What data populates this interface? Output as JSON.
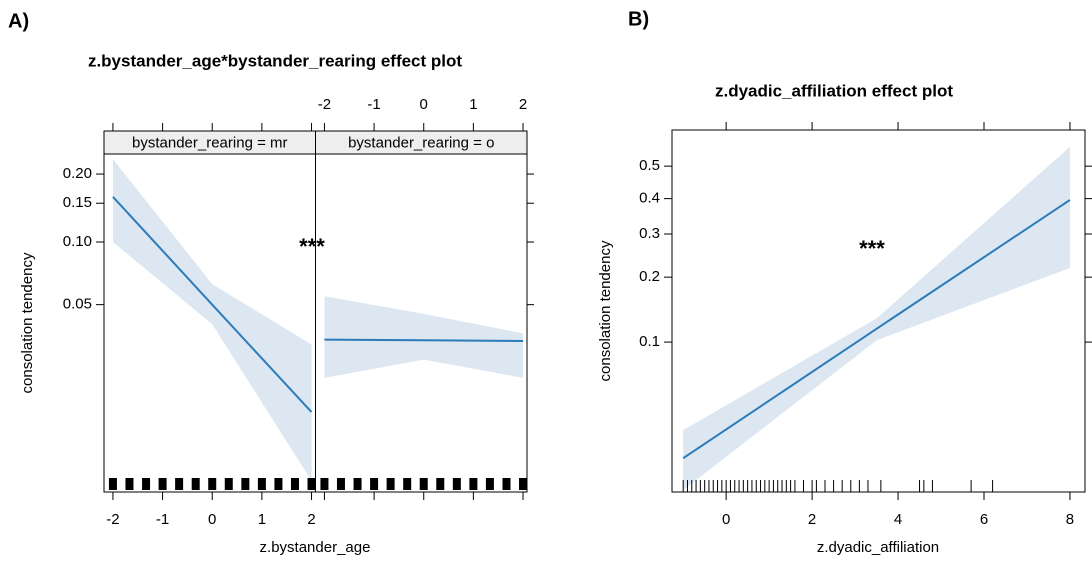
{
  "chart_data": [
    {
      "type": "line",
      "panel_label": "A)",
      "title": "z.bystander_age*bystander_rearing effect plot",
      "x_label": "z.bystander_age",
      "y_label": "consolation tendency",
      "annotation": "***",
      "yscale": "logit",
      "color": "#2b7bba",
      "band_color": "#dce7f2",
      "xlim": [
        -2.18,
        2.08
      ],
      "xticks": [
        -2,
        -1,
        0,
        1,
        2
      ],
      "ylim": [
        0.0056,
        0.241
      ],
      "yticks": [
        0.05,
        {
          "value": 0.1,
          "label": "0.10"
        },
        0.15,
        {
          "value": 0.2,
          "label": "0.20"
        }
      ],
      "facets": [
        {
          "strip": "bystander_rearing = mr",
          "x": [
            -2,
            0,
            2
          ],
          "values": [
            0.16,
            0.05,
            0.0144
          ],
          "upper": [
            0.23,
            0.063,
            0.0317
          ],
          "lower": [
            0.1,
            0.04,
            0.0064
          ],
          "rug": [
            -2,
            -1.667,
            -1.333,
            -1,
            -0.667,
            -0.333,
            0,
            0.333,
            0.667,
            1,
            1.333,
            1.667,
            2
          ]
        },
        {
          "strip": "bystander_rearing = o",
          "x": [
            -2,
            0,
            2
          ],
          "values": [
            0.0335,
            0.0333,
            0.033
          ],
          "upper": [
            0.055,
            0.045,
            0.036
          ],
          "lower": [
            0.0215,
            0.0266,
            0.0215
          ],
          "rug": [
            -2,
            -1.667,
            -1.333,
            -1,
            -0.667,
            -0.333,
            0,
            0.333,
            0.667,
            1,
            1.333,
            1.667,
            2
          ]
        }
      ]
    },
    {
      "type": "line",
      "panel_label": "B)",
      "title": "z.dyadic_affiliation effect plot",
      "x_label": "z.dyadic_affiliation",
      "y_label": "consolation tendency",
      "annotation": "***",
      "yscale": "logit",
      "color": "#2b7bba",
      "band_color": "#dce7f2",
      "xlim": [
        -1.26,
        8.35
      ],
      "xticks": [
        0,
        2,
        4,
        6,
        8
      ],
      "ylim": [
        0.0168,
        0.611
      ],
      "yticks": [
        0.1,
        0.2,
        0.3,
        0.4,
        0.5
      ],
      "x": [
        -1,
        3.5,
        8
      ],
      "values": [
        0.0254,
        0.116,
        0.396
      ],
      "upper": [
        0.0357,
        0.13,
        0.56
      ],
      "lower": [
        0.0172,
        0.102,
        0.219
      ],
      "rug": [
        -1,
        -0.9,
        -0.8,
        -0.7,
        -0.6,
        -0.5,
        -0.4,
        -0.3,
        -0.2,
        -0.1,
        0,
        0.1,
        0.2,
        0.3,
        0.4,
        0.5,
        0.6,
        0.7,
        0.8,
        0.9,
        1,
        1.1,
        1.2,
        1.3,
        1.4,
        1.5,
        1.6,
        1.8,
        2,
        2.1,
        2.3,
        2.5,
        2.7,
        2.9,
        3.1,
        3.3,
        3.6,
        4.5,
        4.6,
        4.8,
        5.7,
        6.2
      ]
    }
  ]
}
